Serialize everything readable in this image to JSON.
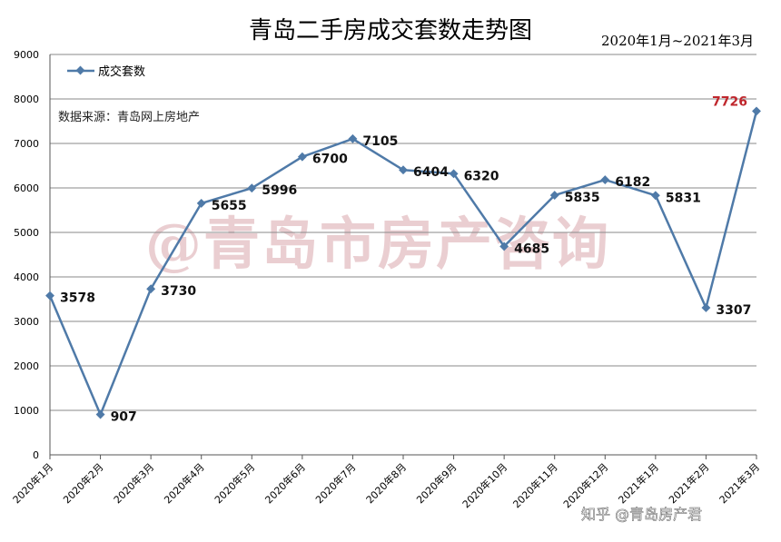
{
  "chart_data": {
    "type": "line",
    "title": "青岛二手房成交套数走势图",
    "subtitle": "2020年1月~2021年3月",
    "source_note": "数据来源：青岛网上房地产",
    "watermark": "@青岛市房产咨询",
    "footer_watermark": "知乎 @青岛房产君",
    "legend_position": "top-left",
    "grid": true,
    "ylim": [
      0,
      9000
    ],
    "yticks": [
      "0",
      "1000",
      "2000",
      "3000",
      "4000",
      "5000",
      "6000",
      "7000",
      "8000",
      "9000"
    ],
    "categories": [
      "2020年1月",
      "2020年2月",
      "2020年3月",
      "2020年4月",
      "2020年5月",
      "2020年6月",
      "2020年7月",
      "2020年8月",
      "2020年9月",
      "2020年10月",
      "2020年11月",
      "2020年12月",
      "2021年1月",
      "2021年2月",
      "2021年3月"
    ],
    "series": [
      {
        "name": "成交套数",
        "color": "#4f7aa8",
        "values": [
          3578,
          907,
          3730,
          5655,
          5996,
          6700,
          7105,
          6404,
          6320,
          4685,
          5835,
          6182,
          5831,
          3307,
          7726
        ],
        "labels": [
          "3578",
          "907",
          "3730",
          "5655",
          "5996",
          "6700",
          "7105",
          "6404",
          "6320",
          "4685",
          "5835",
          "6182",
          "5831",
          "3307",
          "7726"
        ],
        "highlight_index": 14,
        "highlight_color": "#c0272d"
      }
    ]
  }
}
